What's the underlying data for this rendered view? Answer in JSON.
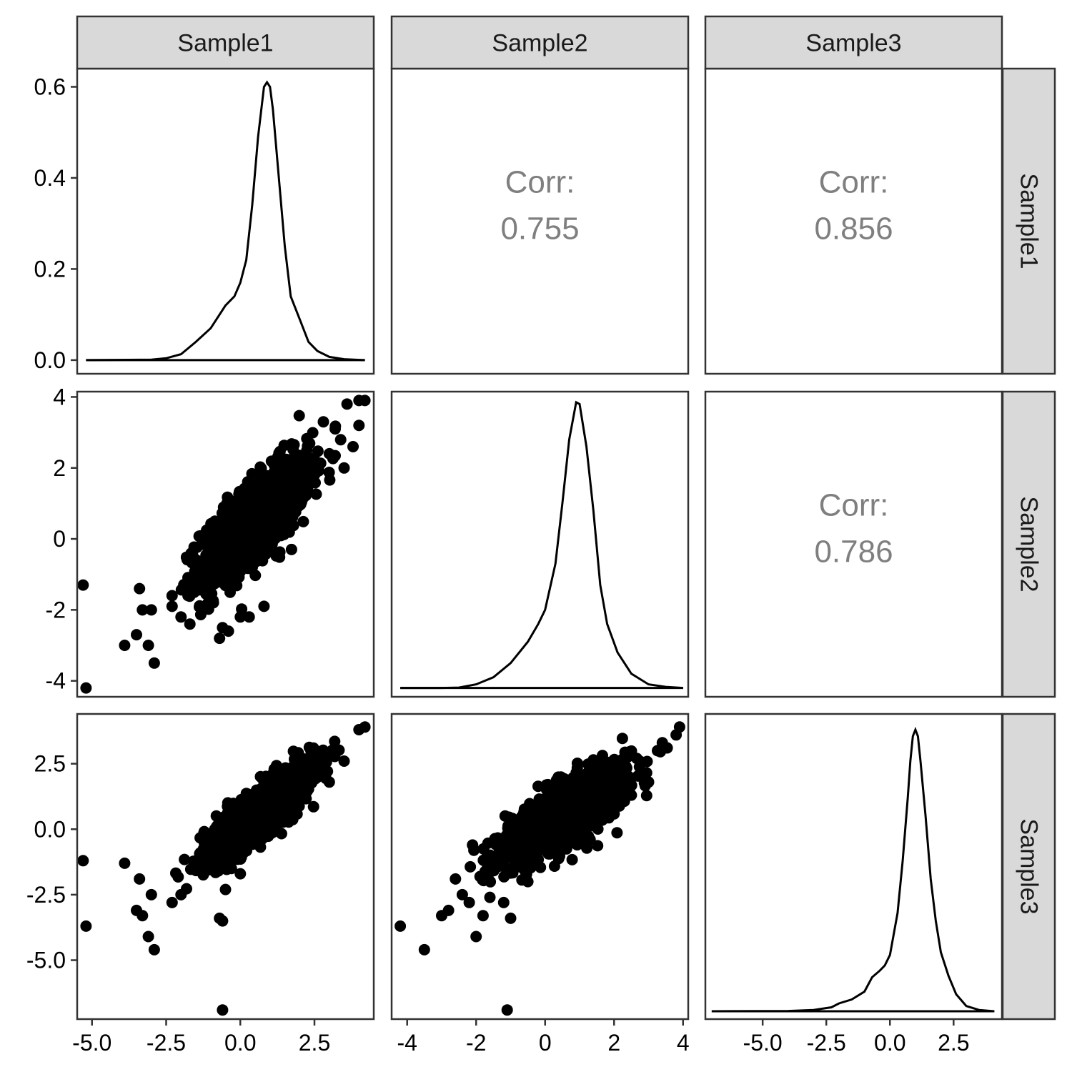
{
  "chart_data": {
    "type": "scatter",
    "variables": [
      "Sample1",
      "Sample2",
      "Sample3"
    ],
    "correlations": [
      {
        "row": "Sample1",
        "col": "Sample2",
        "label": "Corr:",
        "value": "0.755"
      },
      {
        "row": "Sample1",
        "col": "Sample3",
        "label": "Corr:",
        "value": "0.856"
      },
      {
        "row": "Sample2",
        "col": "Sample3",
        "label": "Corr:",
        "value": "0.786"
      }
    ],
    "axes": {
      "x": [
        {
          "var": "Sample1",
          "range": [
            -5.5,
            4.5
          ],
          "ticks": [
            -5.0,
            -2.5,
            0.0,
            2.5
          ],
          "tick_labels": [
            "-5.0",
            "-2.5",
            "0.0",
            "2.5"
          ]
        },
        {
          "var": "Sample2",
          "range": [
            -4.45,
            4.15
          ],
          "ticks": [
            -4,
            -2,
            0,
            2,
            4
          ],
          "tick_labels": [
            "-4",
            "-2",
            "0",
            "2",
            "4"
          ]
        },
        {
          "var": "Sample3",
          "range": [
            -7.25,
            4.4
          ],
          "ticks": [
            -5.0,
            -2.5,
            0.0,
            2.5
          ],
          "tick_labels": [
            "-5.0",
            "-2.5",
            "0.0",
            "2.5"
          ]
        }
      ],
      "y": [
        {
          "var": "Sample1",
          "range": [
            -0.03,
            0.64
          ],
          "ticks": [
            0.0,
            0.2,
            0.4,
            0.6
          ],
          "tick_labels": [
            "0.0",
            "0.2",
            "0.4",
            "0.6"
          ]
        },
        {
          "var": "Sample2",
          "range": [
            -4.45,
            4.15
          ],
          "ticks": [
            -4,
            -2,
            0,
            2,
            4
          ],
          "tick_labels": [
            "-4",
            "-2",
            "0",
            "2",
            "4"
          ]
        },
        {
          "var": "Sample3",
          "range": [
            -7.25,
            4.4
          ],
          "ticks": [
            -5.0,
            -2.5,
            0.0,
            2.5
          ],
          "tick_labels": [
            "-5.0",
            "-2.5",
            "0.0",
            "2.5"
          ]
        }
      ]
    },
    "densities": [
      {
        "var": "Sample1",
        "x": [
          -5.2,
          -3.0,
          -2.5,
          -2.0,
          -1.5,
          -1.0,
          -0.5,
          -0.2,
          0.0,
          0.2,
          0.4,
          0.6,
          0.8,
          0.9,
          1.0,
          1.1,
          1.3,
          1.5,
          1.7,
          2.0,
          2.3,
          2.6,
          3.0,
          3.5,
          4.2
        ],
        "y": [
          0.0,
          0.001,
          0.004,
          0.013,
          0.04,
          0.07,
          0.12,
          0.14,
          0.17,
          0.22,
          0.34,
          0.49,
          0.6,
          0.61,
          0.6,
          0.55,
          0.4,
          0.25,
          0.14,
          0.09,
          0.04,
          0.02,
          0.007,
          0.002,
          0.0
        ]
      },
      {
        "var": "Sample2",
        "x": [
          -4.2,
          -3.0,
          -2.5,
          -2.0,
          -1.5,
          -1.0,
          -0.5,
          -0.2,
          0.0,
          0.3,
          0.5,
          0.7,
          0.9,
          1.0,
          1.2,
          1.4,
          1.6,
          1.8,
          2.1,
          2.5,
          3.0,
          3.5,
          4.0
        ],
        "y": [
          -4.2,
          -4.2,
          -4.19,
          -4.1,
          -3.9,
          -3.5,
          -2.9,
          -2.4,
          -2.0,
          -0.7,
          1.0,
          2.8,
          3.85,
          3.8,
          2.6,
          0.8,
          -1.3,
          -2.4,
          -3.2,
          -3.8,
          -4.1,
          -4.17,
          -4.2
        ]
      },
      {
        "var": "Sample3",
        "x": [
          -7.0,
          -4.0,
          -3.0,
          -2.3,
          -2.0,
          -1.5,
          -1.0,
          -0.7,
          -0.4,
          -0.2,
          0.0,
          0.3,
          0.5,
          0.7,
          0.8,
          0.9,
          1.0,
          1.1,
          1.2,
          1.4,
          1.6,
          1.8,
          2.0,
          2.3,
          2.6,
          3.0,
          3.5,
          4.1
        ],
        "y": [
          -6.95,
          -6.94,
          -6.9,
          -6.8,
          -6.65,
          -6.5,
          -6.2,
          -5.65,
          -5.4,
          -5.2,
          -4.8,
          -3.2,
          -1.2,
          1.2,
          2.6,
          3.55,
          3.8,
          3.55,
          2.6,
          0.5,
          -1.9,
          -3.5,
          -4.7,
          -5.6,
          -6.3,
          -6.75,
          -6.9,
          -6.95
        ]
      }
    ],
    "scatter_outliers": [
      {
        "pair": "Sample1-Sample2",
        "x": [
          -5.3,
          -5.2,
          -3.9,
          -3.5,
          -3.4,
          -3.3,
          -3.1,
          -3.0,
          -2.9,
          -2.3,
          -2.3,
          -2.0,
          -1.7,
          -0.7,
          -0.6,
          -0.4,
          0.0,
          0.3,
          0.8,
          2.8,
          3.2,
          3.6,
          4.0,
          4.2,
          4.0,
          3.8,
          3.5,
          3.0
        ],
        "y": [
          -1.3,
          -4.2,
          -3.0,
          -2.7,
          -1.4,
          -2.0,
          -3.0,
          -2.0,
          -3.5,
          -1.6,
          -1.9,
          -2.2,
          -2.4,
          -2.8,
          -2.5,
          -2.6,
          -2.2,
          -2.2,
          -1.9,
          3.3,
          3.1,
          3.8,
          3.9,
          3.9,
          3.2,
          2.6,
          2.0,
          2.4
        ]
      },
      {
        "pair": "Sample1-Sample3",
        "x": [
          -5.3,
          -5.2,
          -3.9,
          -3.5,
          -3.4,
          -3.3,
          -3.1,
          -3.0,
          -2.9,
          -2.3,
          -2.0,
          -0.7,
          -0.6,
          -0.6,
          -0.5,
          -0.3,
          0.0,
          3.0,
          3.5,
          4.0,
          4.2
        ],
        "y": [
          -1.2,
          -3.7,
          -1.3,
          -3.1,
          -1.9,
          -3.3,
          -4.1,
          -2.5,
          -4.6,
          -2.8,
          -2.5,
          -3.4,
          -3.5,
          -6.9,
          -2.3,
          -1.5,
          -1.7,
          1.8,
          2.6,
          3.8,
          3.9
        ]
      },
      {
        "pair": "Sample2-Sample3",
        "x": [
          -4.2,
          -3.5,
          -3.0,
          -2.8,
          -2.6,
          -2.4,
          -2.2,
          -2.0,
          -1.8,
          -1.6,
          -1.2,
          -1.1,
          -1.0,
          -0.5,
          2.5,
          3.0,
          3.4,
          3.8,
          3.9
        ],
        "y": [
          -3.7,
          -4.6,
          -3.3,
          -3.1,
          -1.9,
          -2.5,
          -2.8,
          -4.1,
          -3.3,
          -2.6,
          -2.8,
          -6.9,
          -3.4,
          -2.0,
          1.3,
          1.8,
          3.3,
          3.6,
          3.9
        ]
      }
    ]
  }
}
